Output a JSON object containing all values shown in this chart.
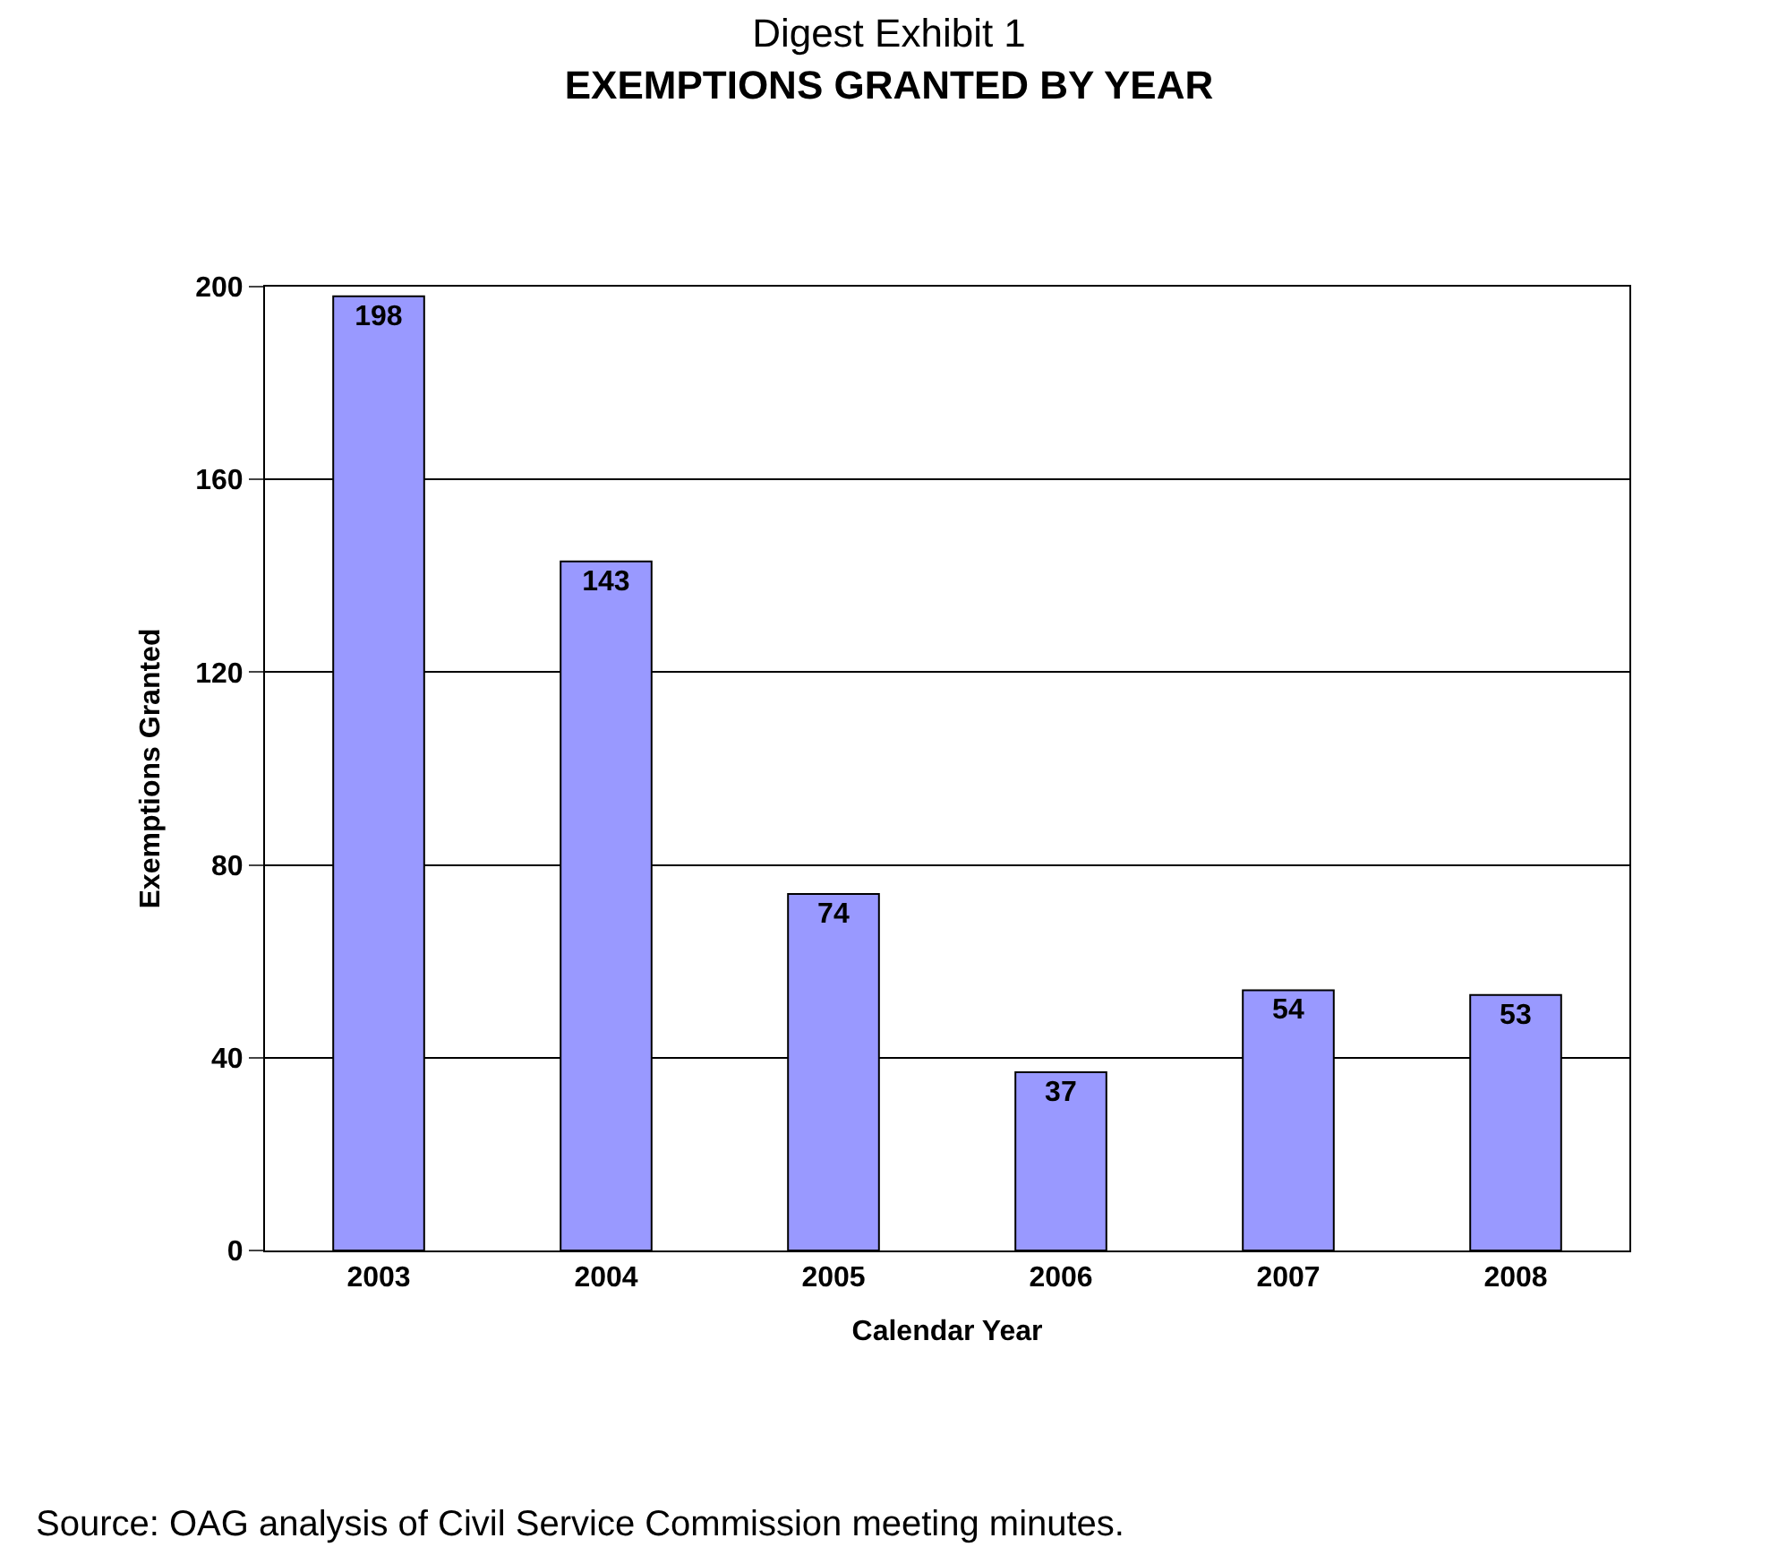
{
  "chart_data": {
    "type": "bar",
    "title": "Digest Exhibit 1",
    "subtitle": "EXEMPTIONS GRANTED BY YEAR",
    "xlabel": "Calendar Year",
    "ylabel": "Exemptions Granted",
    "categories": [
      "2003",
      "2004",
      "2005",
      "2006",
      "2007",
      "2008"
    ],
    "values": [
      198,
      143,
      74,
      37,
      54,
      53
    ],
    "color": "#9999ff",
    "ylim": [
      0,
      200
    ],
    "yticks": [
      0,
      40,
      80,
      120,
      160,
      200
    ],
    "grid": "y",
    "data_labels": true,
    "legend": false,
    "annotations": [
      "Source: OAG analysis of Civil Service Commission meeting minutes."
    ]
  }
}
